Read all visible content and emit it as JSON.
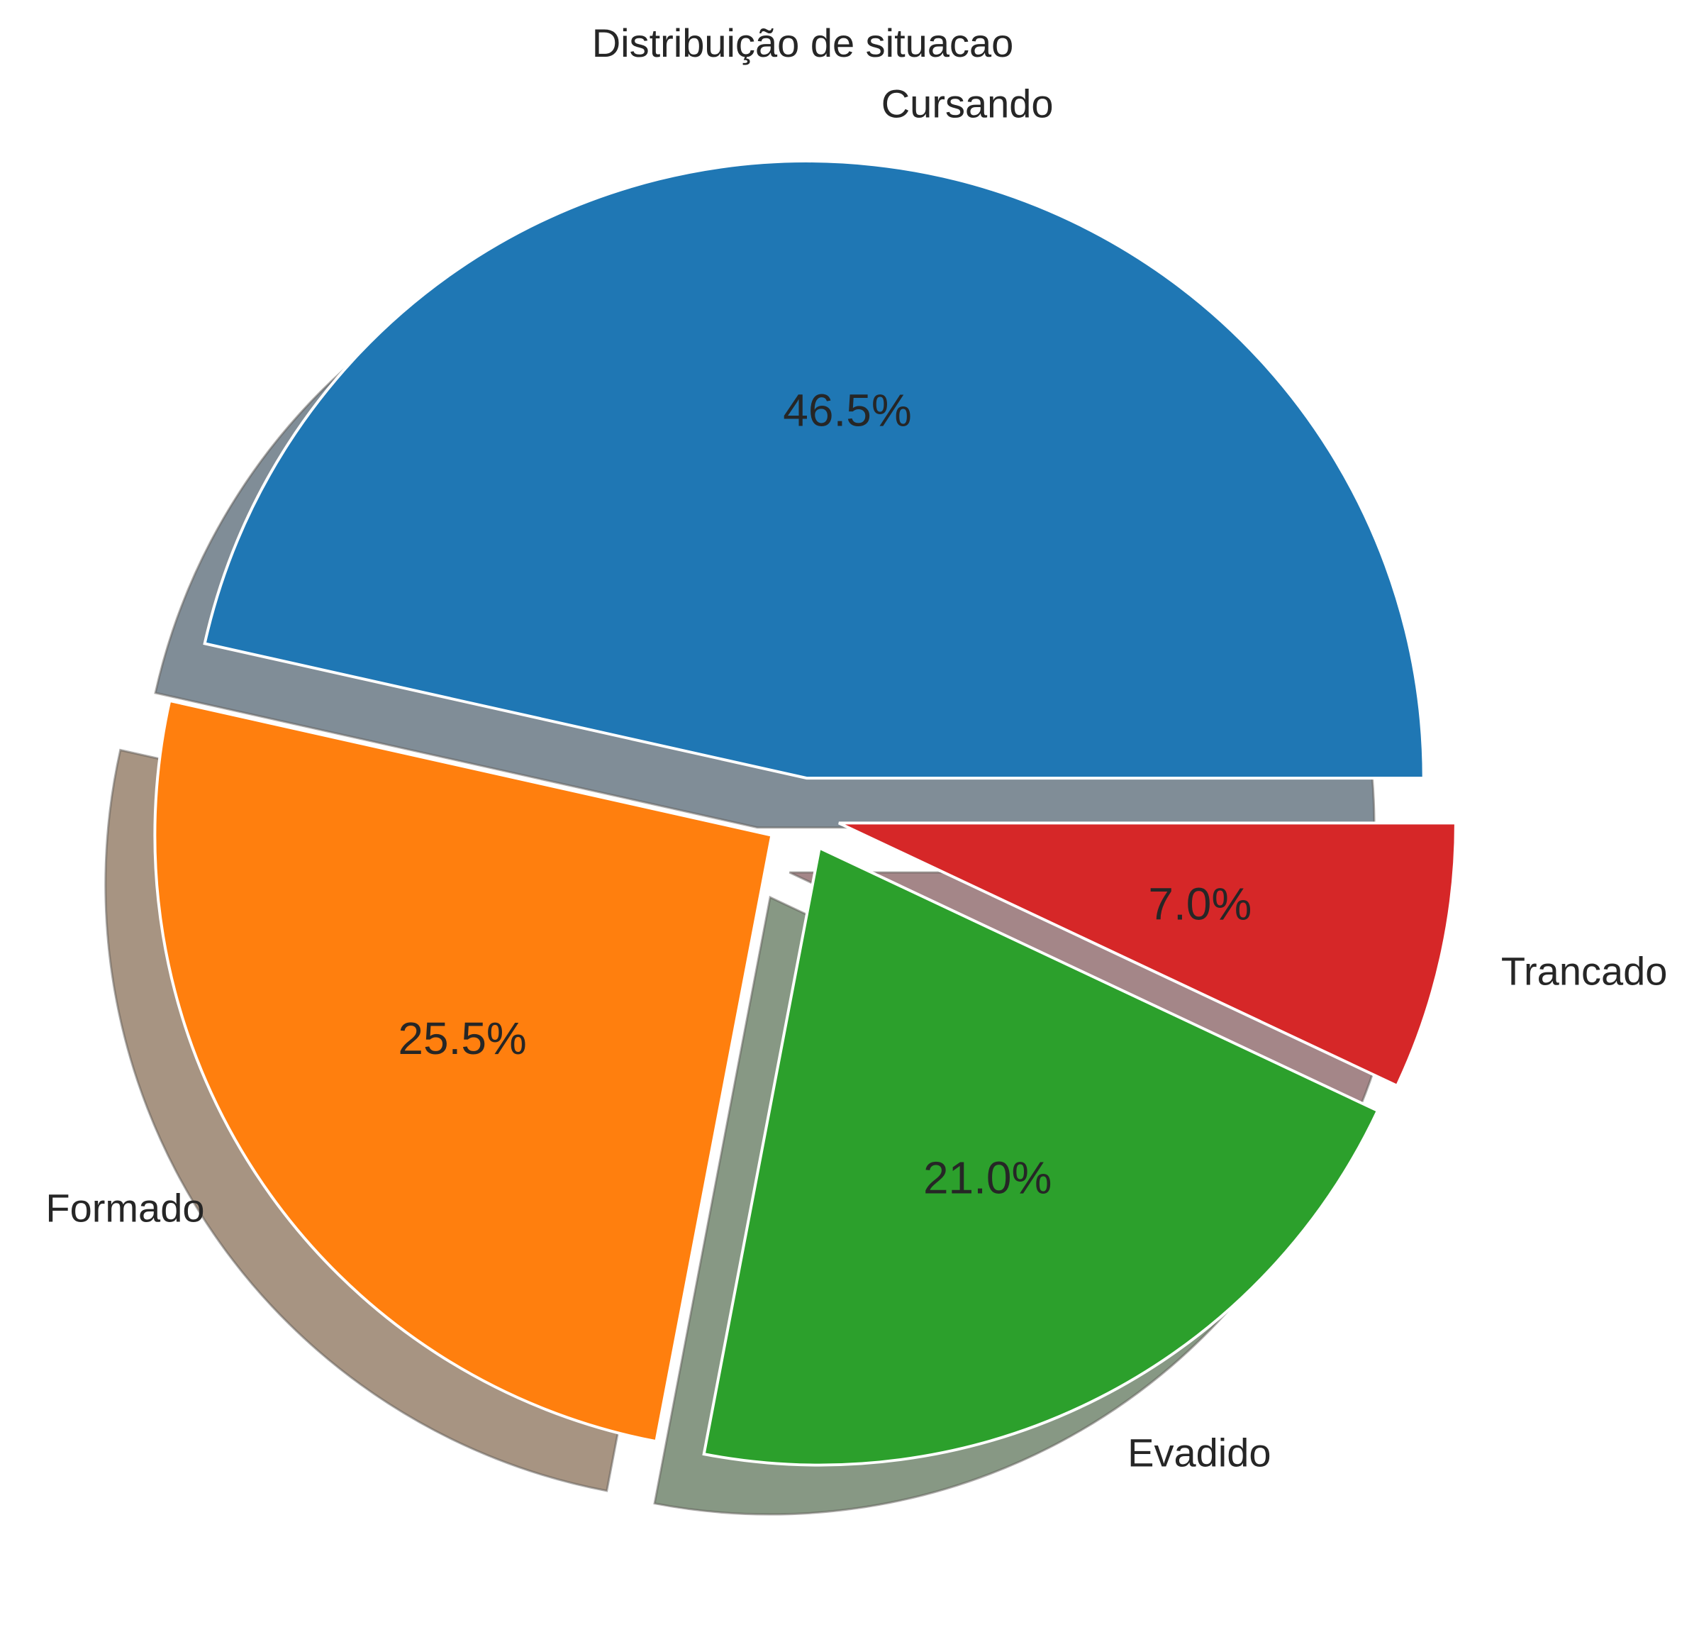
{
  "chart_data": {
    "type": "pie",
    "title": "Distribuição de situacao",
    "slices": [
      {
        "label": "Cursando",
        "value": 46.5,
        "pct_label": "46.5%",
        "color": "#1f77b4",
        "shadow_color": "#808d97"
      },
      {
        "label": "Formado",
        "value": 25.5,
        "pct_label": "25.5%",
        "color": "#ff7f0e",
        "shadow_color": "#a79482"
      },
      {
        "label": "Evadido",
        "value": 21.0,
        "pct_label": "21.0%",
        "color": "#2ca02c",
        "shadow_color": "#879884"
      },
      {
        "label": "Trancado",
        "value": 7.0,
        "pct_label": "7.0%",
        "color": "#d62728",
        "shadow_color": "#a48688"
      }
    ],
    "start_angle_deg": 0,
    "direction": "counterclockwise",
    "exploded": true,
    "shadow": true,
    "legend": "none",
    "grid": false
  }
}
